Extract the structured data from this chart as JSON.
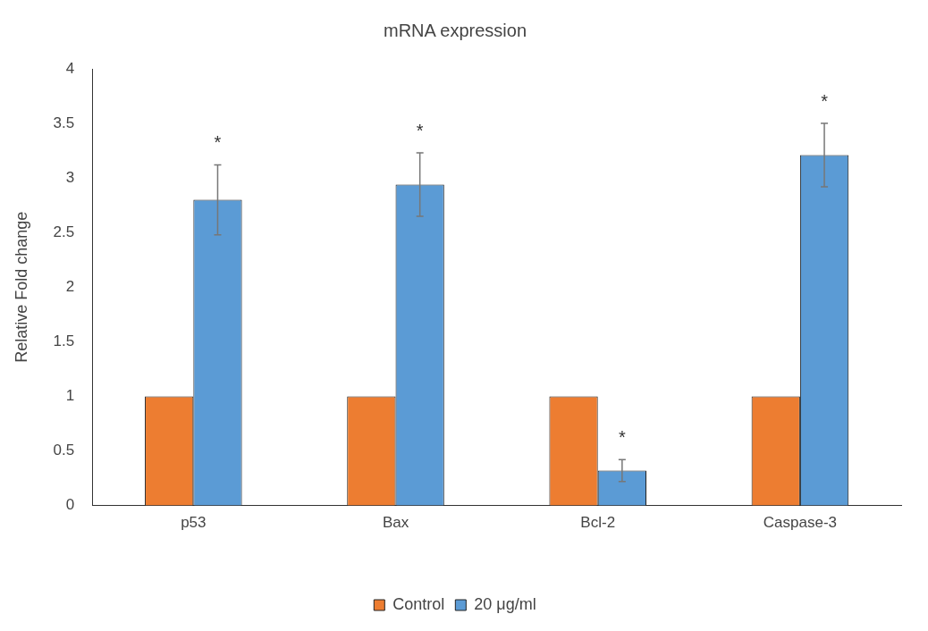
{
  "chart_data": {
    "type": "bar",
    "title": "mRNA expression",
    "ylabel": "Relative Fold change",
    "categories": [
      "p53",
      "Bax",
      "Bcl-2",
      "Caspase-3"
    ],
    "series": [
      {
        "name": "Control",
        "color": "#ed7d31",
        "values": [
          1,
          1,
          1,
          1
        ]
      },
      {
        "name": "20 μg/ml",
        "color": "#5b9bd5",
        "values": [
          2.8,
          2.94,
          0.32,
          3.21
        ],
        "errors": [
          0.32,
          0.29,
          0.1,
          0.29
        ]
      }
    ],
    "ylim": [
      0,
      4
    ],
    "yticks": [
      0,
      0.5,
      1,
      1.5,
      2,
      2.5,
      3,
      3.5,
      4
    ],
    "grid": false,
    "legend": "bottom",
    "annotations": [
      "*",
      "*",
      "*",
      "*"
    ]
  }
}
